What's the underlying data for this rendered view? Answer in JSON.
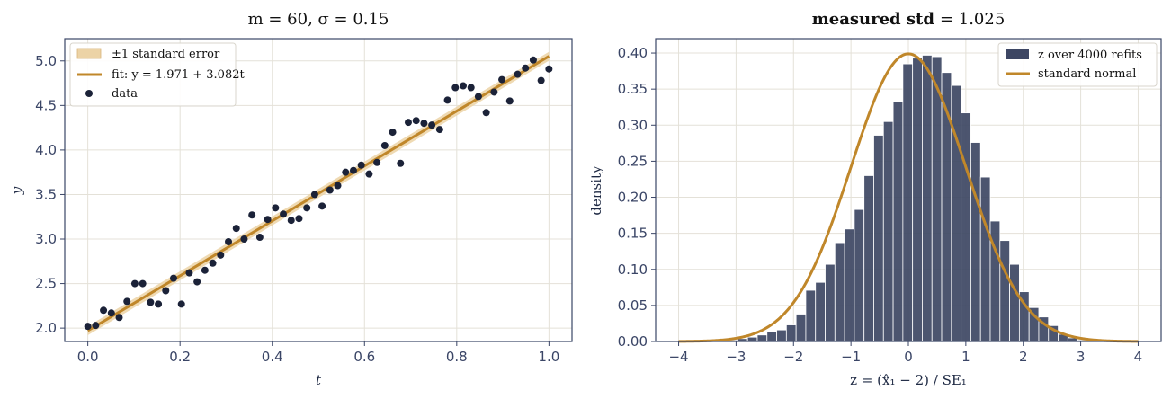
{
  "chart_data": [
    {
      "type": "scatter",
      "title": "m = 60, σ = 0.15",
      "xlabel": "t",
      "ylabel": "y",
      "xlim": [
        -0.05,
        1.05
      ],
      "ylim": [
        1.85,
        5.25
      ],
      "xticks": [
        0.0,
        0.2,
        0.4,
        0.6,
        0.8,
        1.0
      ],
      "xtick_labels": [
        "0.0",
        "0.2",
        "0.4",
        "0.6",
        "0.8",
        "1.0"
      ],
      "yticks": [
        2.0,
        2.5,
        3.0,
        3.5,
        4.0,
        4.5,
        5.0
      ],
      "ytick_labels": [
        "2.0",
        "2.5",
        "3.0",
        "3.5",
        "4.0",
        "4.5",
        "5.0"
      ],
      "grid": true,
      "legend_position": "top-left",
      "legend": [
        "±1 standard error",
        "fit: y = 1.971 + 3.082t",
        "data"
      ],
      "fit": {
        "intercept": 1.971,
        "slope": 3.082,
        "band_halfwidth": 0.05
      },
      "colors": {
        "fit": "#c0872a",
        "band": "#ecd3a6",
        "data": "#1b2238"
      },
      "series": [
        {
          "name": "data",
          "x": [
            0.0,
            0.017,
            0.034,
            0.051,
            0.068,
            0.085,
            0.102,
            0.119,
            0.136,
            0.153,
            0.169,
            0.186,
            0.203,
            0.22,
            0.237,
            0.254,
            0.271,
            0.288,
            0.305,
            0.322,
            0.339,
            0.356,
            0.373,
            0.39,
            0.407,
            0.424,
            0.441,
            0.458,
            0.475,
            0.492,
            0.508,
            0.525,
            0.542,
            0.559,
            0.576,
            0.593,
            0.61,
            0.627,
            0.644,
            0.661,
            0.678,
            0.695,
            0.712,
            0.729,
            0.746,
            0.763,
            0.78,
            0.797,
            0.814,
            0.831,
            0.847,
            0.864,
            0.881,
            0.898,
            0.915,
            0.932,
            0.949,
            0.966,
            0.983,
            1.0
          ],
          "y": [
            2.02,
            2.03,
            2.2,
            2.17,
            2.12,
            2.3,
            2.5,
            2.5,
            2.29,
            2.27,
            2.42,
            2.56,
            2.27,
            2.62,
            2.52,
            2.65,
            2.73,
            2.82,
            2.97,
            3.12,
            3.0,
            3.27,
            3.02,
            3.22,
            3.35,
            3.28,
            3.21,
            3.23,
            3.35,
            3.5,
            3.37,
            3.55,
            3.6,
            3.75,
            3.77,
            3.83,
            3.73,
            3.86,
            4.05,
            4.2,
            3.85,
            4.31,
            4.33,
            4.3,
            4.28,
            4.23,
            4.56,
            4.7,
            4.72,
            4.7,
            4.6,
            4.42,
            4.65,
            4.79,
            4.55,
            4.85,
            4.92,
            5.01,
            4.78,
            4.91
          ]
        }
      ]
    },
    {
      "type": "bar",
      "title_bold": "measured std",
      "title_value": "= 1.025",
      "xlabel": "z = (x̂₁ − 2) / SE₁",
      "ylabel": "density",
      "xlim": [
        -4.4,
        4.4
      ],
      "ylim": [
        0.0,
        0.42
      ],
      "xticks": [
        -4,
        -3,
        -2,
        -1,
        0,
        1,
        2,
        3,
        4
      ],
      "xtick_labels": [
        "−4",
        "−3",
        "−2",
        "−1",
        "0",
        "1",
        "2",
        "3",
        "4"
      ],
      "yticks": [
        0.0,
        0.05,
        0.1,
        0.15,
        0.2,
        0.25,
        0.3,
        0.35,
        0.4
      ],
      "ytick_labels": [
        "0.00",
        "0.05",
        "0.10",
        "0.15",
        "0.20",
        "0.25",
        "0.30",
        "0.35",
        "0.40"
      ],
      "grid": true,
      "legend_position": "top-right",
      "legend": [
        "z over 4000 refits",
        "standard normal"
      ],
      "colors": {
        "bars": "#3d4663",
        "curve": "#c0872a"
      },
      "bin_width": 0.169,
      "bin_left_edges": [
        -3.307,
        -3.138,
        -2.969,
        -2.8,
        -2.631,
        -2.462,
        -2.293,
        -2.124,
        -1.955,
        -1.786,
        -1.617,
        -1.448,
        -1.279,
        -1.11,
        -0.941,
        -0.772,
        -0.603,
        -0.434,
        -0.265,
        -0.096,
        0.073,
        0.242,
        0.411,
        0.58,
        0.749,
        0.918,
        1.087,
        1.256,
        1.425,
        1.594,
        1.763,
        1.932,
        2.101,
        2.27,
        2.439,
        2.608,
        2.777,
        2.946,
        3.115
      ],
      "densities": [
        0.002,
        0.002,
        0.004,
        0.006,
        0.009,
        0.014,
        0.016,
        0.023,
        0.038,
        0.071,
        0.082,
        0.107,
        0.137,
        0.156,
        0.183,
        0.23,
        0.286,
        0.305,
        0.333,
        0.385,
        0.393,
        0.397,
        0.395,
        0.373,
        0.355,
        0.317,
        0.276,
        0.228,
        0.167,
        0.14,
        0.107,
        0.069,
        0.047,
        0.034,
        0.022,
        0.01,
        0.005,
        0.002,
        0.001
      ],
      "curve": {
        "name": "standard normal",
        "mean": 0,
        "std": 1
      }
    }
  ]
}
